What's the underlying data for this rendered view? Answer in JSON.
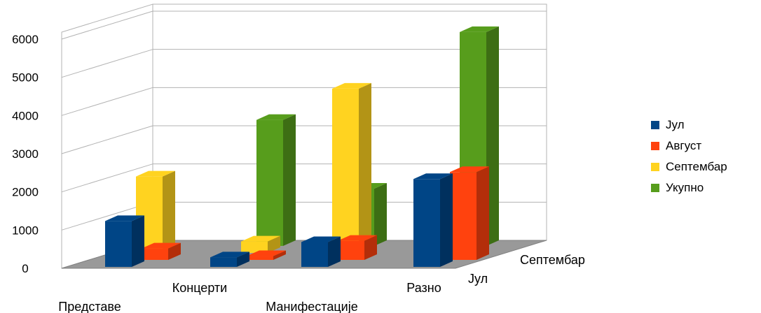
{
  "chart_data": {
    "type": "bar",
    "subtype": "3d-column",
    "categories": [
      "Представе",
      "Концерти",
      "Манифестације",
      "Разно"
    ],
    "depth_labels": [
      "Јул",
      "Септембар"
    ],
    "y_ticks": [
      "0",
      "1000",
      "2000",
      "3000",
      "4000",
      "5000",
      "6000"
    ],
    "ylim": [
      0,
      6000
    ],
    "series": [
      {
        "name": "Јул",
        "color": "#004586",
        "values": [
          1200,
          250,
          650,
          2300
        ]
      },
      {
        "name": "Август",
        "color": "#ff420e",
        "values": [
          300,
          100,
          500,
          2300
        ]
      },
      {
        "name": "Септембар",
        "color": "#ffd320",
        "values": [
          2000,
          300,
          4300,
          300
        ]
      },
      {
        "name": "Укупно",
        "color": "#579d1c",
        "values": [
          0,
          3300,
          1500,
          5600
        ]
      }
    ],
    "right_group": {
      "series": [
        {
          "name": "Јул",
          "values": [
            100,
            800
          ]
        },
        {
          "name": "Август",
          "values": [
            0,
            250
          ]
        },
        {
          "name": "Септембар",
          "values": [
            400,
            500
          ]
        },
        {
          "name": "Укупно",
          "values": [
            100,
            1500
          ]
        }
      ]
    },
    "legend_position": "right",
    "grid": true
  }
}
